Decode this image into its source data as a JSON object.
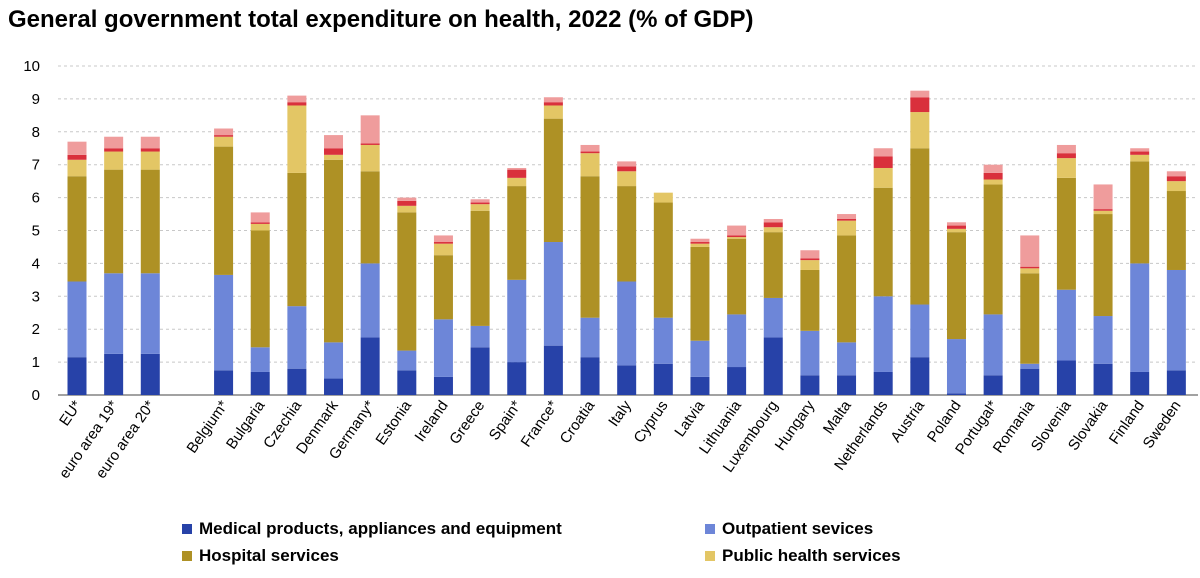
{
  "chart_data": {
    "type": "bar",
    "stacked": true,
    "title": "General government total expenditure on health, 2022 (% of GDP)",
    "xlabel": "",
    "ylabel": "",
    "ylim": [
      0,
      10
    ],
    "yticks": [
      "0",
      "1",
      "2",
      "3",
      "4",
      "5",
      "6",
      "7",
      "8",
      "9",
      "10"
    ],
    "grid": "horizontal dashed",
    "legend_position": "bottom",
    "categories": [
      "EU*",
      "euro area 19*",
      "euro area 20*",
      "",
      "Belgium*",
      "Bulgaria",
      "Czechia",
      "Denmark",
      "Germany*",
      "Estonia",
      "Ireland",
      "Greece",
      "Spain*",
      "France*",
      "Croatia",
      "Italy",
      "Cyprus",
      "Latvia",
      "Lithuania",
      "Luxembourg",
      "Hungary",
      "Malta",
      "Netherlands",
      "Austria",
      "Poland",
      "Portugal*",
      "Romania",
      "Slovenia",
      "Slovakia",
      "Finland",
      "Sweden"
    ],
    "series": [
      {
        "name": "Medical products, appliances and equipment",
        "color": "#2742a8",
        "values": [
          1.15,
          1.25,
          1.25,
          null,
          0.75,
          0.7,
          0.8,
          0.5,
          1.75,
          0.75,
          0.55,
          1.45,
          1.0,
          1.5,
          1.15,
          0.9,
          0.95,
          0.55,
          0.85,
          1.75,
          0.6,
          0.6,
          0.7,
          1.15,
          0.05,
          0.6,
          0.8,
          1.05,
          0.95,
          0.7,
          0.75
        ]
      },
      {
        "name": "Outpatient sevices",
        "color": "#6d86d8",
        "values": [
          2.3,
          2.45,
          2.45,
          null,
          2.9,
          0.75,
          1.9,
          1.1,
          2.25,
          0.6,
          1.75,
          0.65,
          2.5,
          3.15,
          1.2,
          2.55,
          1.4,
          1.1,
          1.6,
          1.2,
          1.35,
          1.0,
          2.3,
          1.6,
          1.65,
          1.85,
          0.15,
          2.15,
          1.45,
          3.3,
          3.05
        ]
      },
      {
        "name": "Hospital services",
        "color": "#ae9125",
        "values": [
          3.2,
          3.15,
          3.15,
          null,
          3.9,
          3.55,
          4.05,
          5.55,
          2.8,
          4.2,
          1.95,
          3.5,
          2.85,
          3.75,
          4.3,
          2.9,
          3.5,
          2.85,
          2.3,
          2.0,
          1.85,
          3.25,
          3.3,
          4.75,
          3.25,
          3.95,
          2.75,
          3.4,
          3.1,
          3.1,
          2.4
        ]
      },
      {
        "name": "Public health services",
        "color": "#e3c665",
        "values": [
          0.5,
          0.55,
          0.55,
          null,
          0.3,
          0.2,
          2.05,
          0.15,
          0.8,
          0.2,
          0.35,
          0.2,
          0.25,
          0.4,
          0.7,
          0.45,
          0.3,
          0.1,
          0.05,
          0.15,
          0.3,
          0.45,
          0.6,
          1.1,
          0.1,
          0.15,
          0.15,
          0.6,
          0.1,
          0.2,
          0.3
        ]
      },
      {
        "name": "",
        "color": "#d9303c",
        "values": [
          0.15,
          0.1,
          0.1,
          null,
          0.05,
          0.05,
          0.1,
          0.2,
          0.05,
          0.15,
          0.05,
          0.05,
          0.25,
          0.1,
          0.05,
          0.15,
          0.0,
          0.05,
          0.05,
          0.15,
          0.05,
          0.05,
          0.35,
          0.45,
          0.1,
          0.2,
          0.05,
          0.15,
          0.05,
          0.1,
          0.15
        ]
      },
      {
        "name": "",
        "color": "#ef9c9c",
        "values": [
          0.4,
          0.35,
          0.35,
          null,
          0.2,
          0.3,
          0.2,
          0.4,
          0.85,
          0.1,
          0.2,
          0.1,
          0.05,
          0.15,
          0.2,
          0.15,
          0.0,
          0.1,
          0.3,
          0.1,
          0.25,
          0.15,
          0.25,
          0.2,
          0.1,
          0.25,
          0.95,
          0.25,
          0.75,
          0.1,
          0.15
        ]
      }
    ]
  }
}
